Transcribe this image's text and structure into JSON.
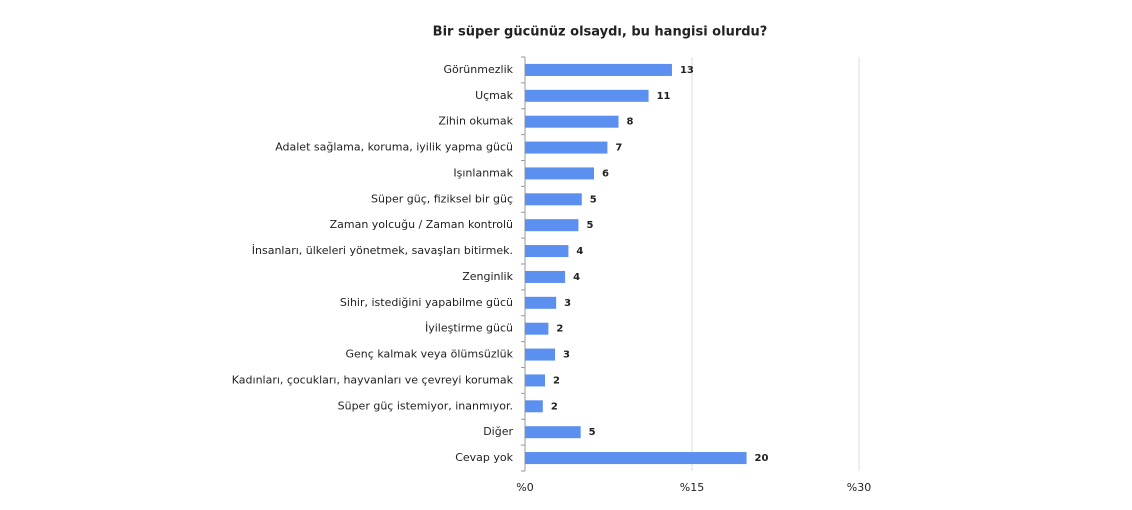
{
  "chart_data": {
    "type": "bar",
    "orientation": "horizontal",
    "title": "Bir süper gücünüz olsaydı, bu hangisi olurdu?",
    "categories": [
      "Görünmezlik",
      "Uçmak",
      "Zihin okumak",
      "Adalet sağlama, koruma, iyilik yapma gücü",
      "Işınlanmak",
      "Süper güç, fiziksel bir güç",
      "Zaman yolcuğu / Zaman kontrolü",
      "İnsanları, ülkeleri yönetmek, savaşları bitirmek.",
      "Zenginlik",
      "Sihir, istediğini yapabilme gücü",
      "İyileştirme gücü",
      "Genç kalmak veya ölümsüzlük",
      "Kadınları, çocukları, hayvanları ve çevreyi korumak",
      "Süper güç istemiyor, inanmıyor.",
      "Diğer",
      "Cevap yok"
    ],
    "values": [
      13.2,
      11.1,
      8.4,
      7.4,
      6.2,
      5.1,
      4.8,
      3.9,
      3.6,
      2.8,
      2.1,
      2.7,
      1.8,
      1.6,
      5.0,
      19.9
    ],
    "value_labels": [
      "13",
      "11",
      "8",
      "7",
      "6",
      "5",
      "5",
      "4",
      "4",
      "3",
      "2",
      "3",
      "2",
      "2",
      "5",
      "20"
    ],
    "color": "#5b8ff0",
    "xlim": [
      0,
      30
    ],
    "xticks": [
      {
        "value": 0,
        "label": "%0"
      },
      {
        "value": 15,
        "label": "%15"
      },
      {
        "value": 30,
        "label": "%30"
      }
    ],
    "grid": true
  }
}
